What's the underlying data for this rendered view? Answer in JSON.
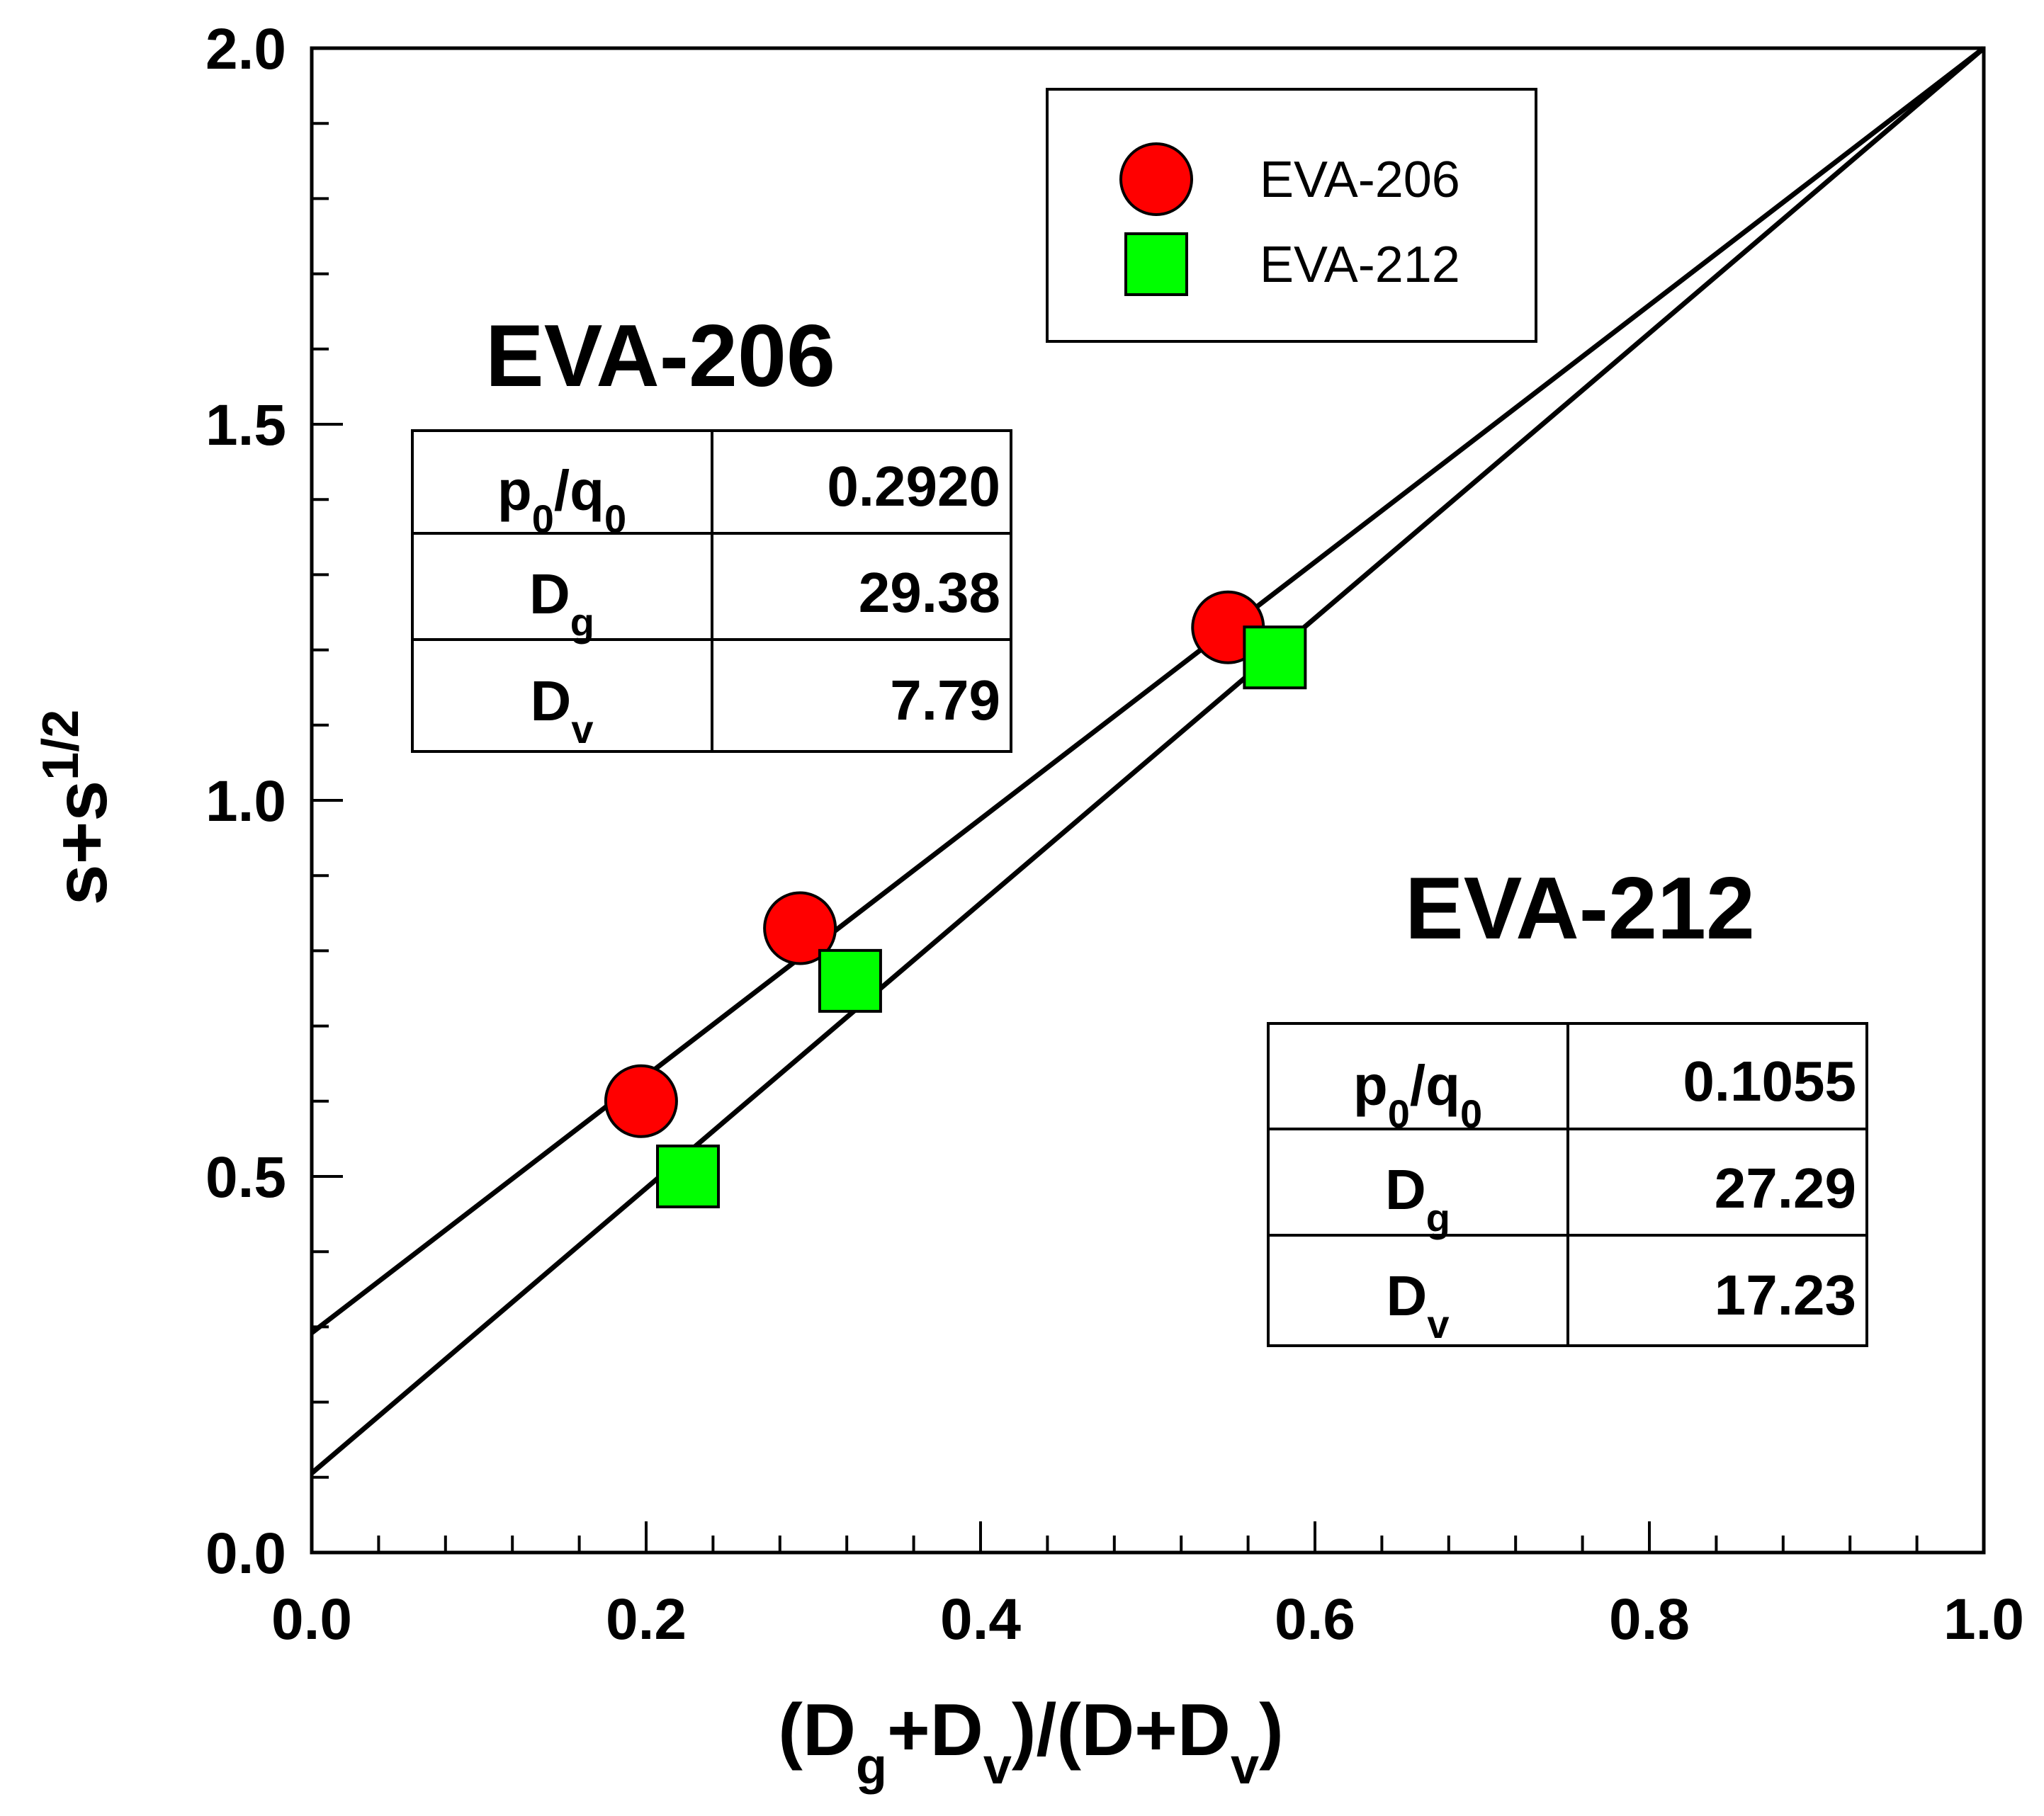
{
  "chart_data": {
    "type": "scatter",
    "title": "",
    "xlabel": "(Dg+Dv)/(D+Dv)",
    "ylabel": "s+s^1/2",
    "xlim": [
      0.0,
      1.0
    ],
    "ylim": [
      0.0,
      2.0
    ],
    "x_ticks": [
      0.0,
      0.2,
      0.4,
      0.6,
      0.8,
      1.0
    ],
    "x_tick_labels": [
      "0.0",
      "0.2",
      "0.4",
      "0.6",
      "0.8",
      "1.0"
    ],
    "y_ticks": [
      0.0,
      0.5,
      1.0,
      1.5,
      2.0
    ],
    "y_tick_labels": [
      "0.0",
      "0.5",
      "1.0",
      "1.5",
      "2.0"
    ],
    "x_minor_step": 0.04,
    "y_minor_step": 0.1,
    "grid": false,
    "legend_position": "top-right",
    "series": [
      {
        "name": "EVA-206",
        "marker": "circle",
        "color": "#ff0000",
        "x": [
          0.197,
          0.292,
          0.548
        ],
        "y": [
          0.6,
          0.83,
          1.23
        ]
      },
      {
        "name": "EVA-212",
        "marker": "square",
        "color": "#00ff00",
        "x": [
          0.225,
          0.322,
          0.576
        ],
        "y": [
          0.5,
          0.76,
          1.19
        ]
      }
    ],
    "fit_lines": [
      {
        "name": "EVA-206 fit",
        "x": [
          0.0,
          1.0
        ],
        "y": [
          0.292,
          2.0
        ]
      },
      {
        "name": "EVA-212 fit",
        "x": [
          0.0,
          1.0
        ],
        "y": [
          0.1055,
          2.0
        ]
      }
    ]
  },
  "axes": {
    "x_title": {
      "open": "(D",
      "sub1": "g",
      "mid": "+D",
      "sub2": "v",
      "close1": ")/(D+D",
      "sub3": "v",
      "close2": ")"
    },
    "y_title": {
      "base": "s+s",
      "sup": "1/2"
    }
  },
  "legend": {
    "items": [
      {
        "label": "EVA-206"
      },
      {
        "label": "EVA-212"
      }
    ]
  },
  "panels": [
    {
      "title": "EVA-206",
      "rows": [
        {
          "k1": "p",
          "s1": "0",
          "k2": "/q",
          "s2": "0",
          "value": "0.2920"
        },
        {
          "k1": "D",
          "s1": "g",
          "k2": "",
          "s2": "",
          "value": "29.38"
        },
        {
          "k1": "D",
          "s1": "v",
          "k2": "",
          "s2": "",
          "value": "7.79"
        }
      ]
    },
    {
      "title": "EVA-212",
      "rows": [
        {
          "k1": "p",
          "s1": "0",
          "k2": "/q",
          "s2": "0",
          "value": "0.1055"
        },
        {
          "k1": "D",
          "s1": "g",
          "k2": "",
          "s2": "",
          "value": "27.29"
        },
        {
          "k1": "D",
          "s1": "v",
          "k2": "",
          "s2": "",
          "value": "17.23"
        }
      ]
    }
  ]
}
